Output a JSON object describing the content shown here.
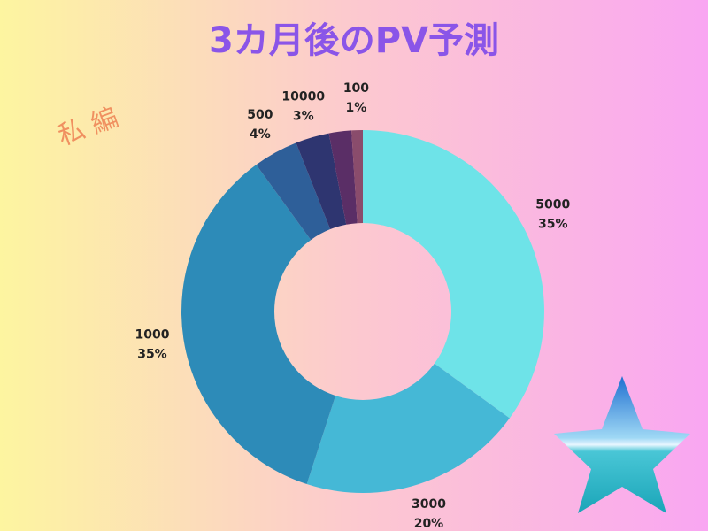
{
  "chart_data": {
    "type": "pie",
    "title": "3カ月後のPV予測",
    "annotation": "私 編",
    "categories": [
      "5000",
      "3000",
      "1000",
      "500",
      "10000",
      null,
      "100"
    ],
    "values": [
      35,
      20,
      35,
      4,
      3,
      2,
      1
    ],
    "value_labels": [
      "35%",
      "20%",
      "35%",
      "4%",
      "3%",
      null,
      "1%"
    ],
    "colors": [
      "#6ee3e8",
      "#45b8d6",
      "#2d8bb8",
      "#2e5f99",
      "#2e3570",
      "#5a2e66",
      "#8a4c6c"
    ]
  }
}
